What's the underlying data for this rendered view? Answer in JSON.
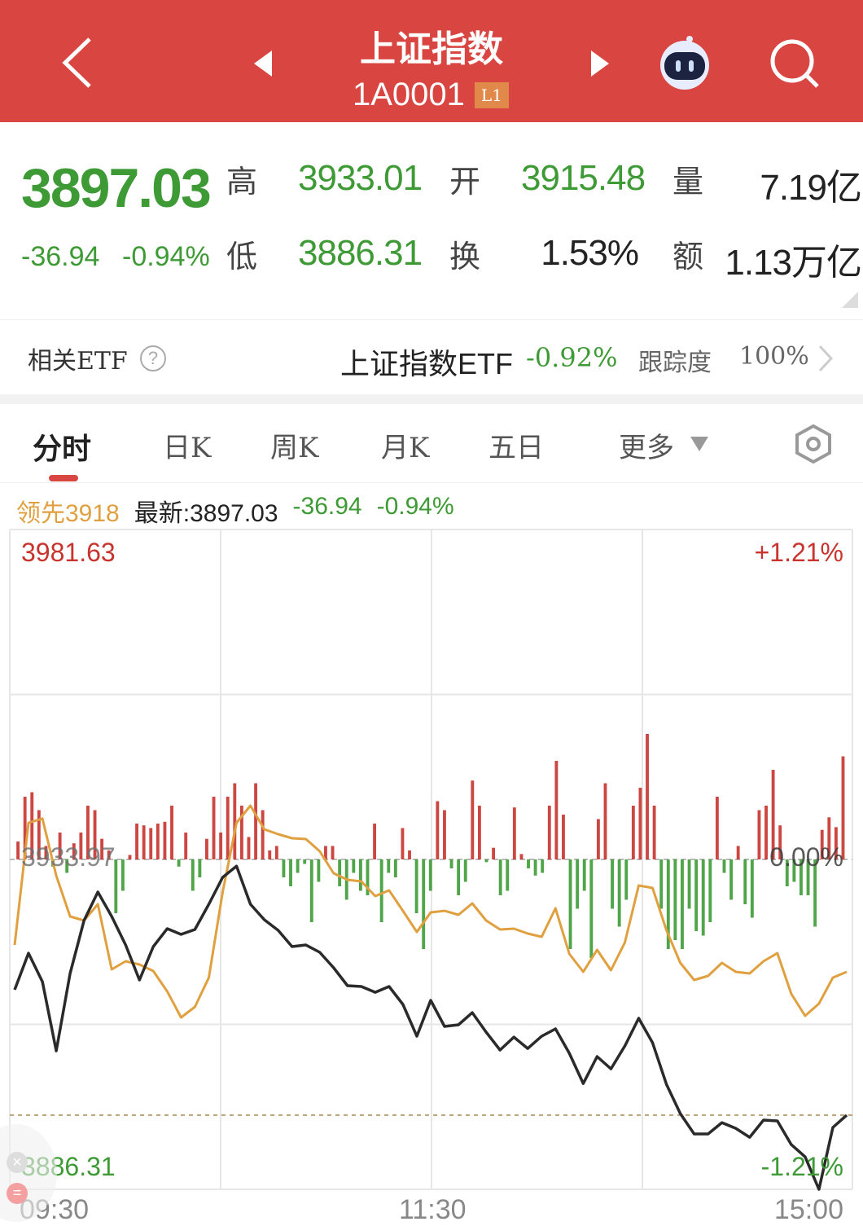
{
  "header": {
    "title": "上证指数",
    "code": "1A0001",
    "level_badge": "L1",
    "badge_color": "#e0894a",
    "bg_color": "#d94541",
    "icons": [
      "back-arrow-icon",
      "prev-stock-icon",
      "next-stock-icon",
      "robot-assistant-icon",
      "search-icon"
    ]
  },
  "quote": {
    "price": "3897.03",
    "change": "-36.94",
    "change_pct": "-0.94%",
    "fields": [
      {
        "label": "高",
        "value": "3933.01",
        "color": "green"
      },
      {
        "label": "开",
        "value": "3915.48",
        "color": "green"
      },
      {
        "label": "量",
        "value": "7.19亿",
        "color": "dark"
      },
      {
        "label": "低",
        "value": "3886.31",
        "color": "green"
      },
      {
        "label": "换",
        "value": "1.53%",
        "color": "dark"
      },
      {
        "label": "额",
        "value": "1.13万亿",
        "color": "dark"
      }
    ]
  },
  "etf": {
    "label": "相关ETF",
    "name": "上证指数ETF",
    "change": "-0.92%",
    "tracking_label": "跟踪度",
    "tracking_value": "100%"
  },
  "tabs": [
    {
      "label": "分时",
      "active": true
    },
    {
      "label": "日K"
    },
    {
      "label": "周K"
    },
    {
      "label": "月K"
    },
    {
      "label": "五日"
    },
    {
      "label": "更多"
    }
  ],
  "legend": {
    "leading": "领先3918",
    "latest": "最新:3897.03",
    "change": "-36.94",
    "change_pct": "-0.94%"
  },
  "chart_data": {
    "type": "line",
    "y_top_label": "3981.63",
    "y_mid_label": "3933.97",
    "y_bottom_label": "3886.31",
    "pct_top_label": "+1.21%",
    "pct_mid_label": "0.00%",
    "pct_bottom_label": "-1.21%",
    "x_tick_labels": [
      "09:30",
      "11:30",
      "15:00"
    ],
    "ylim": [
      3886.31,
      3981.63
    ],
    "prev_close": 3933.97,
    "grid": true,
    "colors": {
      "price": "#2a2a2a",
      "leading": "#e0a040",
      "up": "#c8332e",
      "down": "#3d9a35"
    },
    "price": [
      3915.14,
      3920.43,
      3916.31,
      3906.31,
      3917.49,
      3925.14,
      3929.26,
      3925.73,
      3921.61,
      3916.55,
      3921.38,
      3923.97,
      3923.14,
      3923.85,
      3927.5,
      3931.38,
      3933.01,
      3927.5,
      3925.26,
      3923.73,
      3921.38,
      3921.61,
      3920.55,
      3918.32,
      3915.73,
      3915.61,
      3914.78,
      3915.61,
      3913.02,
      3908.43,
      3913.61,
      3909.84,
      3910.08,
      3911.84,
      3909.02,
      3906.43,
      3908.31,
      3906.66,
      3908.43,
      3909.49,
      3905.96,
      3901.6,
      3905.49,
      3903.72,
      3907.02,
      3911.02,
      3907.49,
      3901.48,
      3897.25,
      3894.31,
      3894.31,
      3895.95,
      3895.13,
      3893.83,
      3896.31,
      3896.19,
      3892.77,
      3891.01,
      3886.31,
      3895.25,
      3897.03
    ],
    "leading": [
      3921.61,
      3939.27,
      3939.86,
      3931.62,
      3925.73,
      3925.14,
      3927.5,
      3918.08,
      3919.26,
      3918.79,
      3917.85,
      3914.9,
      3911.14,
      3912.67,
      3916.9,
      3929.26,
      3939.27,
      3941.74,
      3938.32,
      3937.62,
      3937.03,
      3936.91,
      3935.15,
      3931.97,
      3931.03,
      3930.79,
      3928.67,
      3929.5,
      3926.55,
      3923.49,
      3926.32,
      3926.55,
      3925.97,
      3927.61,
      3925.14,
      3923.85,
      3923.97,
      3923.26,
      3922.79,
      3926.91,
      3920.32,
      3917.73,
      3920.91,
      3917.96,
      3921.97,
      3930.2,
      3929.85,
      3923.73,
      3919.02,
      3916.55,
      3917.14,
      3919.02,
      3917.73,
      3917.49,
      3919.26,
      3920.43,
      3914.55,
      3911.37,
      3913.14,
      3916.9,
      3917.73
    ],
    "bars": [
      20,
      70,
      75,
      55,
      15,
      -8,
      30,
      -15,
      18,
      30,
      60,
      55,
      23,
      10,
      -60,
      -35,
      5,
      40,
      38,
      35,
      40,
      42,
      60,
      -8,
      30,
      -35,
      -20,
      23,
      70,
      30,
      70,
      85,
      60,
      25,
      85,
      55,
      10,
      15,
      -20,
      -30,
      -15,
      -5,
      -70,
      -25,
      15,
      15,
      -30,
      -45,
      -15,
      -35,
      -40,
      40,
      -70,
      -15,
      -20,
      35,
      10,
      -60,
      -100,
      -35,
      65,
      55,
      -10,
      -40,
      -25,
      88,
      60,
      -3,
      13,
      -40,
      -35,
      58,
      6,
      -10,
      -18,
      -15,
      60,
      110,
      50,
      -100,
      -55,
      -35,
      -110,
      45,
      85,
      -55,
      -75,
      -45,
      60,
      80,
      140,
      60,
      -55,
      -100,
      -90,
      -100,
      -55,
      -80,
      -85,
      -70,
      70,
      -15,
      -45,
      15,
      -50,
      -65,
      55,
      60,
      100,
      38,
      -30,
      -25,
      -40,
      -40,
      -75,
      33,
      47,
      36,
      115
    ]
  }
}
